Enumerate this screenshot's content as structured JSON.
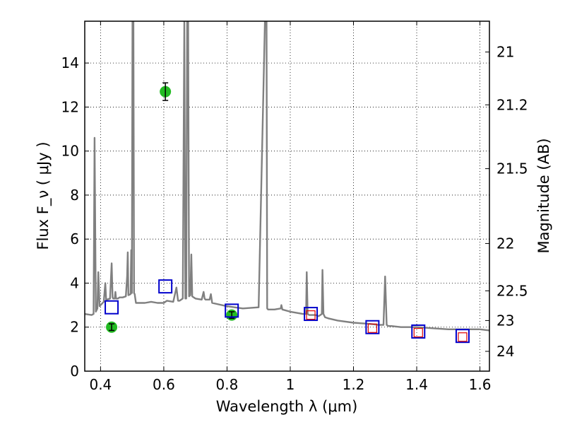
{
  "chart_data": {
    "type": "scatter",
    "xlabel": "Wavelength  λ (μm)",
    "ylabel": "Flux  F_ν  ( μJy )",
    "y2label": "Magnitude (AB)",
    "xlim": [
      0.35,
      1.63
    ],
    "ylim": [
      0,
      15.9
    ],
    "grid": true,
    "x_ticks": [
      0.4,
      0.6,
      0.8,
      1.0,
      1.2,
      1.4,
      1.6
    ],
    "x_tick_labels": [
      "0.4",
      "0.6",
      "0.8",
      "1",
      "1.2",
      "1.4",
      "1.6"
    ],
    "y_ticks": [
      0,
      2,
      4,
      6,
      8,
      10,
      12,
      14
    ],
    "y_tick_labels": [
      "0",
      "2",
      "4",
      "6",
      "8",
      "10",
      "12",
      "14"
    ],
    "y2_ticks": [
      {
        "label": "21",
        "flux": 14.5
      },
      {
        "label": "21.2",
        "flux": 12.1
      },
      {
        "label": "21.5",
        "flux": 9.2
      },
      {
        "label": "22",
        "flux": 5.8
      },
      {
        "label": "22.5",
        "flux": 3.65
      },
      {
        "label": "23",
        "flux": 2.3
      },
      {
        "label": "24",
        "flux": 0.9
      }
    ],
    "colors": {
      "model": "#808080",
      "photometry": "#22bb22",
      "model_photometry": "#0000cc",
      "observed_photometry": "#dd0000"
    },
    "series": [
      {
        "kind": "line",
        "x": [
          0.35,
          0.372,
          0.378,
          0.381,
          0.385,
          0.39,
          0.393,
          0.397,
          0.4,
          0.41,
          0.415,
          0.418,
          0.42,
          0.43,
          0.435,
          0.438,
          0.44,
          0.445,
          0.447,
          0.449,
          0.455,
          0.46,
          0.47,
          0.48,
          0.484,
          0.486,
          0.488,
          0.495,
          0.497,
          0.499,
          0.501,
          0.502,
          0.504,
          0.506,
          0.508,
          0.51,
          0.512,
          0.52,
          0.54,
          0.56,
          0.58,
          0.6,
          0.61,
          0.63,
          0.64,
          0.645,
          0.65,
          0.66,
          0.665,
          0.668,
          0.671,
          0.674,
          0.677,
          0.68,
          0.684,
          0.687,
          0.69,
          0.7,
          0.72,
          0.726,
          0.729,
          0.732,
          0.745,
          0.749,
          0.753,
          0.8,
          0.85,
          0.9,
          0.92,
          0.923,
          0.925,
          0.927,
          0.93,
          0.95,
          0.97,
          0.972,
          0.975,
          1.0,
          1.04,
          1.05,
          1.052,
          1.055,
          1.06,
          1.08,
          1.09,
          1.1,
          1.102,
          1.105,
          1.11,
          1.12,
          1.15,
          1.2,
          1.25,
          1.28,
          1.295,
          1.3,
          1.305,
          1.31,
          1.32,
          1.35,
          1.4,
          1.45,
          1.5,
          1.55,
          1.6,
          1.63
        ],
        "y": [
          2.6,
          2.55,
          2.6,
          10.6,
          2.7,
          2.85,
          4.5,
          2.95,
          3.0,
          3.15,
          4.0,
          3.2,
          3.25,
          3.3,
          4.9,
          3.35,
          3.3,
          3.3,
          3.6,
          3.3,
          3.3,
          3.35,
          3.35,
          3.4,
          4.3,
          5.4,
          3.45,
          3.5,
          5.5,
          3.55,
          16.0,
          16.0,
          16.0,
          3.55,
          3.5,
          3.3,
          3.1,
          3.1,
          3.1,
          3.15,
          3.1,
          3.1,
          3.2,
          3.15,
          3.8,
          3.2,
          3.2,
          3.3,
          16.0,
          3.3,
          3.3,
          16.0,
          16.0,
          3.4,
          3.45,
          5.3,
          3.4,
          3.3,
          3.25,
          3.6,
          3.3,
          3.25,
          3.25,
          3.5,
          3.1,
          2.95,
          2.85,
          2.9,
          16.0,
          16.0,
          16.0,
          2.85,
          2.8,
          2.8,
          2.85,
          3.0,
          2.8,
          2.7,
          2.6,
          2.6,
          4.5,
          2.6,
          2.55,
          2.55,
          2.5,
          2.6,
          4.6,
          2.6,
          2.45,
          2.4,
          2.3,
          2.2,
          2.15,
          2.1,
          2.1,
          4.3,
          2.1,
          2.05,
          2.05,
          2.0,
          2.0,
          1.95,
          1.9,
          1.9,
          1.9,
          1.85
        ]
      },
      {
        "kind": "points",
        "x": [
          0.435,
          0.605,
          0.815
        ],
        "y": [
          2.0,
          12.7,
          2.55
        ],
        "yerr": [
          0.15,
          0.4,
          0.15
        ]
      },
      {
        "kind": "squares",
        "x": [
          0.435,
          0.605,
          0.815,
          1.065,
          1.26,
          1.405,
          1.545
        ],
        "y": [
          2.9,
          3.85,
          2.75,
          2.6,
          2.0,
          1.8,
          1.6
        ]
      },
      {
        "kind": "squares",
        "x": [
          1.065,
          1.26,
          1.405,
          1.545
        ],
        "y": [
          2.55,
          1.95,
          1.75,
          1.55
        ]
      }
    ]
  }
}
